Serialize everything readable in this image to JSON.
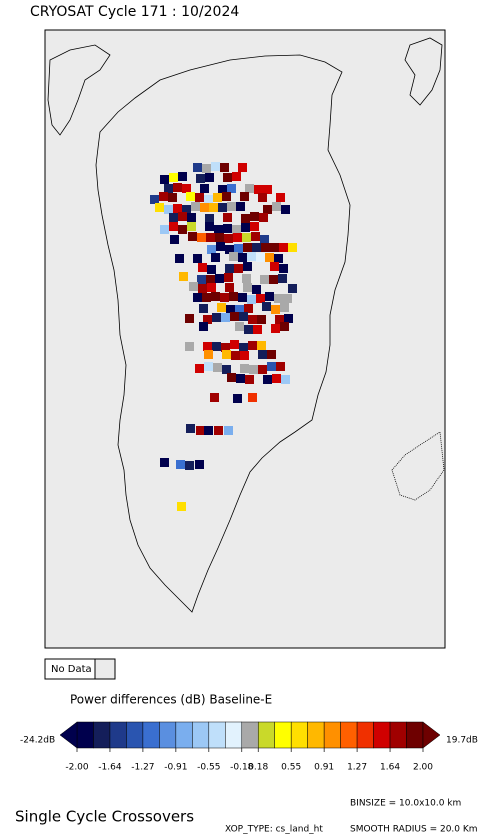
{
  "header": {
    "title": "CRYOSAT Cycle 171 : 10/2024"
  },
  "legend": {
    "no_data": "No Data"
  },
  "colorbar": {
    "title": "Power differences (dB) Baseline-E",
    "under_label": "-24.2dB",
    "over_label": "19.7dB",
    "colors": [
      "#00004d",
      "#141e5a",
      "#1f3a8a",
      "#2a55b0",
      "#3a6fd0",
      "#5a8fe0",
      "#7aaeee",
      "#9cc8f5",
      "#bfdffa",
      "#e2f2fd",
      "#a9a9a9",
      "#c9d92a",
      "#ffff00",
      "#ffdf00",
      "#ffb800",
      "#ff9000",
      "#ff6000",
      "#f03000",
      "#d00000",
      "#a00000",
      "#6e0000"
    ],
    "tick_labels": [
      "-2.00",
      "-1.64",
      "-1.27",
      "-0.91",
      "-0.55",
      "-0.18",
      "0.18",
      "0.55",
      "0.91",
      "1.27",
      "1.64",
      "2.00"
    ]
  },
  "footer": {
    "title": "Single Cycle Crossovers",
    "binsize": "BINSIZE = 10.0x10.0 km",
    "xop_type": "XOP_TYPE: cs_land_ht",
    "smooth_radius": "SMOOTH RADIUS = 20.0 Km"
  }
}
